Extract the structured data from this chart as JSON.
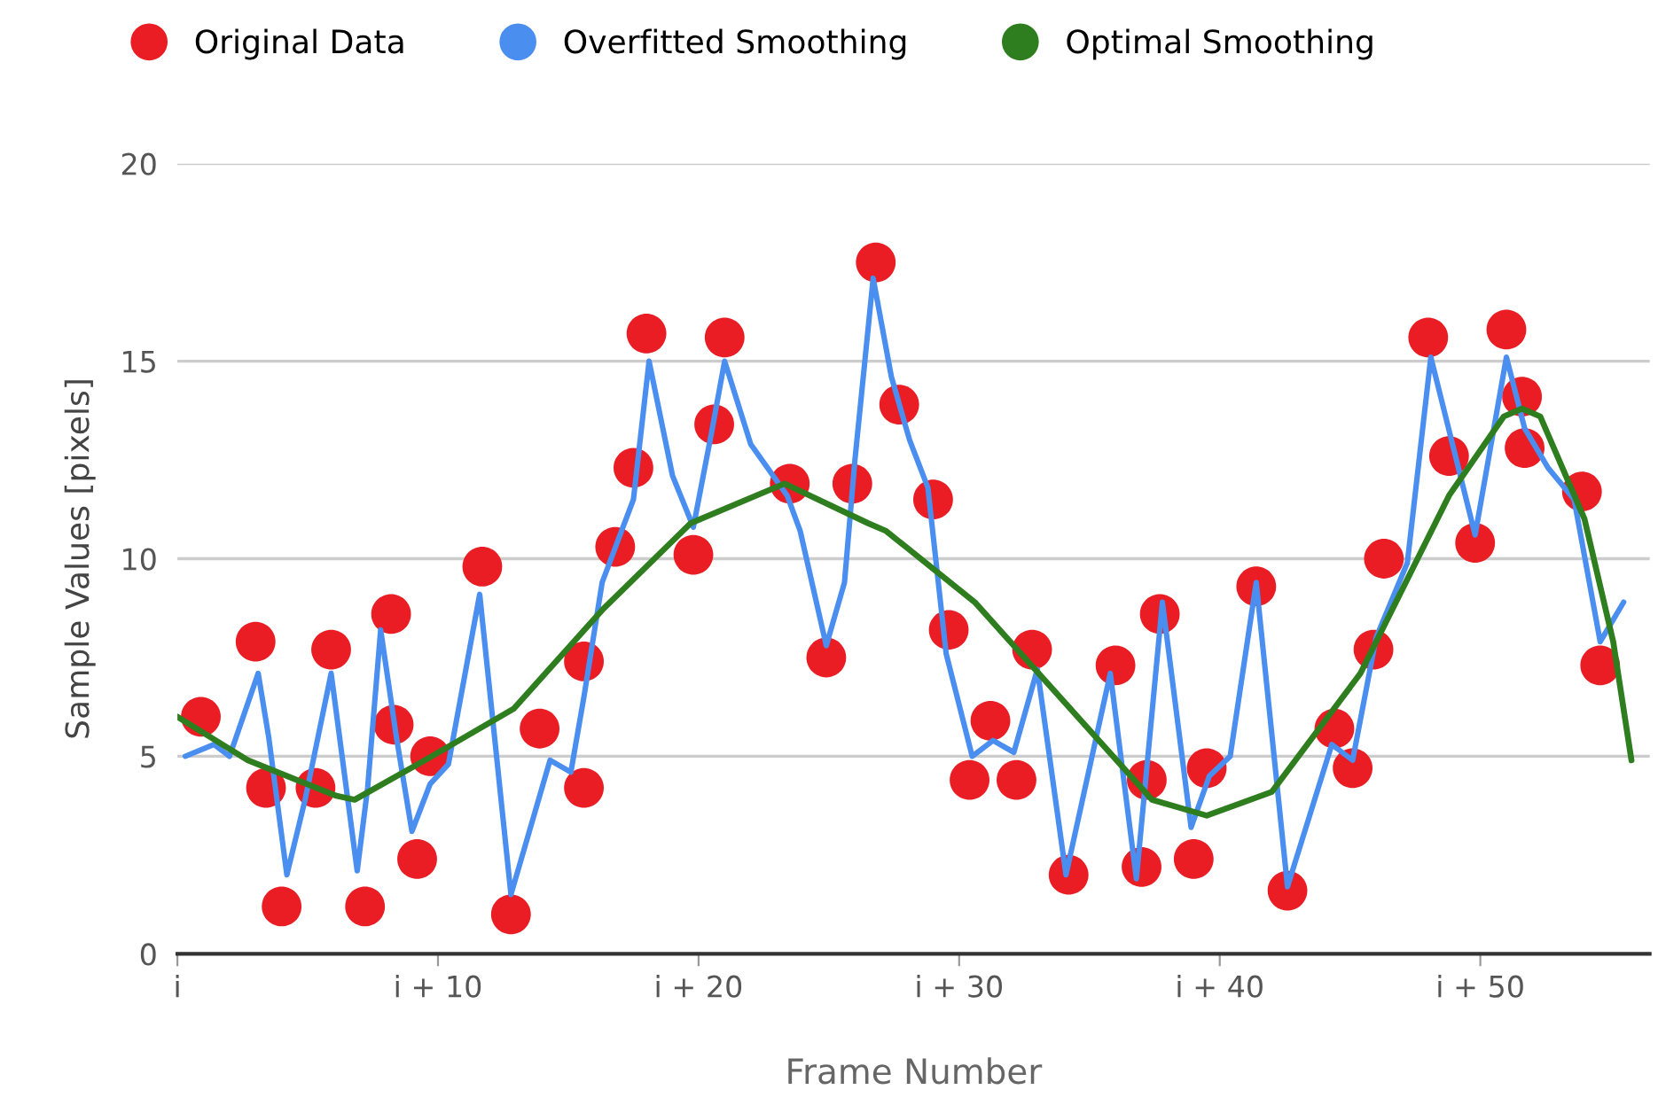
{
  "chart_data": {
    "type": "scatter",
    "xlabel": "Frame Number",
    "ylabel": "Sample Values [pixels]",
    "xlim": [
      0,
      56.5
    ],
    "ylim": [
      0,
      20
    ],
    "xticks": [
      {
        "value": 0,
        "label": "i"
      },
      {
        "value": 10,
        "label": "i + 10"
      },
      {
        "value": 20,
        "label": "i + 20"
      },
      {
        "value": 30,
        "label": "i + 30"
      },
      {
        "value": 40,
        "label": "i + 40"
      },
      {
        "value": 50,
        "label": "i + 50"
      }
    ],
    "yticks": [
      0,
      5,
      10,
      15,
      20
    ],
    "grid": "y",
    "legend": "top",
    "series": [
      {
        "name": "Original Data",
        "marker": "circle",
        "color": "#ea1c24",
        "x": [
          0.9,
          3.0,
          3.4,
          4.0,
          5.3,
          5.9,
          7.2,
          8.2,
          8.3,
          9.2,
          9.7,
          11.7,
          12.8,
          13.9,
          15.6,
          15.6,
          16.8,
          17.5,
          18.0,
          19.8,
          20.6,
          21.0,
          23.5,
          24.9,
          25.9,
          26.8,
          27.7,
          29.0,
          29.6,
          30.4,
          31.2,
          32.2,
          32.8,
          34.2,
          36.0,
          37.2,
          37.0,
          37.7,
          39.5,
          39.0,
          41.4,
          42.6,
          44.4,
          45.1,
          45.9,
          46.3,
          48.0,
          48.8,
          49.8,
          51.0,
          51.6,
          51.7,
          53.9,
          54.6
        ],
        "values": [
          6.0,
          7.9,
          4.2,
          1.2,
          4.2,
          7.7,
          1.2,
          8.6,
          5.8,
          2.4,
          5.0,
          9.8,
          1.0,
          5.7,
          7.4,
          4.2,
          10.3,
          12.3,
          15.7,
          10.1,
          13.4,
          15.6,
          11.9,
          7.5,
          11.9,
          17.5,
          13.9,
          11.5,
          8.2,
          4.4,
          5.9,
          4.4,
          7.7,
          2.0,
          7.3,
          4.4,
          2.2,
          8.6,
          4.7,
          2.4,
          9.3,
          1.6,
          5.7,
          4.7,
          7.7,
          10.0,
          15.6,
          12.6,
          10.4,
          15.8,
          14.1,
          12.8,
          11.7,
          7.3
        ]
      },
      {
        "name": "Overfitted Smoothing",
        "type": "line",
        "marker": "none",
        "color": "#4a8ef0",
        "x": [
          0.3,
          1.4,
          2.0,
          3.1,
          3.5,
          4.2,
          4.9,
          5.9,
          6.9,
          7.3,
          7.8,
          8.4,
          9.0,
          9.7,
          10.4,
          11.6,
          12.8,
          14.3,
          15.1,
          15.6,
          16.3,
          17.5,
          18.1,
          19.0,
          19.8,
          20.5,
          21.0,
          22.0,
          23.4,
          23.9,
          24.9,
          25.6,
          26.0,
          26.7,
          27.4,
          28.1,
          28.8,
          29.5,
          30.5,
          31.3,
          32.1,
          33.0,
          34.1,
          35.8,
          36.8,
          37.8,
          38.9,
          39.6,
          40.4,
          41.4,
          42.6,
          44.3,
          45.1,
          46.0,
          47.2,
          48.1,
          49.8,
          51.0,
          51.7,
          52.6,
          53.6,
          54.6,
          55.5
        ],
        "values": [
          5.0,
          5.3,
          5.0,
          7.1,
          5.5,
          2.0,
          3.9,
          7.1,
          2.1,
          4.2,
          8.2,
          5.5,
          3.1,
          4.3,
          4.8,
          9.1,
          1.5,
          4.9,
          4.6,
          6.5,
          9.4,
          11.5,
          15.0,
          12.1,
          10.8,
          13.2,
          15.0,
          12.9,
          11.6,
          10.7,
          7.8,
          9.4,
          12.5,
          17.1,
          14.6,
          13.0,
          11.8,
          7.6,
          5.0,
          5.4,
          5.1,
          7.2,
          2.0,
          7.1,
          1.9,
          8.9,
          3.2,
          4.5,
          5.0,
          9.4,
          1.7,
          5.3,
          4.9,
          8.0,
          9.9,
          15.1,
          10.6,
          15.1,
          13.3,
          12.3,
          11.5,
          7.9,
          8.9
        ]
      },
      {
        "name": "Optimal Smoothing",
        "type": "line",
        "marker": "none",
        "color": "#2e7d1e",
        "x": [
          0.0,
          2.7,
          6.1,
          6.8,
          9.5,
          12.9,
          16.3,
          19.7,
          23.3,
          26.5,
          27.2,
          30.6,
          34.0,
          37.4,
          39.5,
          42.0,
          45.4,
          48.8,
          50.9,
          51.6,
          52.3,
          54.0,
          55.1,
          55.8
        ],
        "values": [
          6.0,
          4.9,
          4.0,
          3.9,
          4.9,
          6.2,
          8.7,
          10.9,
          11.9,
          10.9,
          10.7,
          8.9,
          6.4,
          3.9,
          3.5,
          4.1,
          7.1,
          11.6,
          13.6,
          13.8,
          13.6,
          11.0,
          7.9,
          4.9
        ]
      }
    ]
  }
}
